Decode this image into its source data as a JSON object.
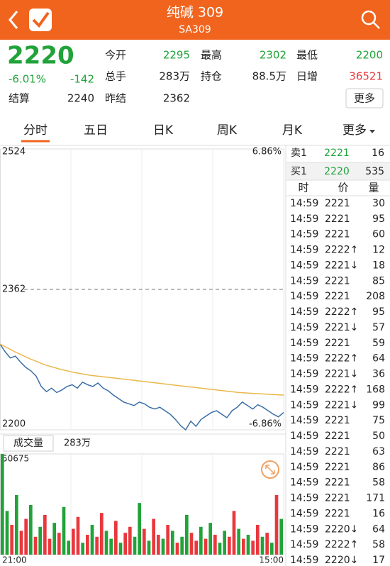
{
  "header": {
    "title": "纯碱 309",
    "subtitle": "SA309"
  },
  "quote": {
    "price": "2220",
    "change_pct": "-6.01%",
    "change": "-142",
    "settle_label": "结算",
    "settle": "2240",
    "prev_settle_label": "昨结",
    "prev_settle": "2362",
    "open_label": "今开",
    "open": "2295",
    "volume_label": "总手",
    "volume": "283万",
    "high_label": "最高",
    "high": "2302",
    "oi_label": "持仓",
    "oi": "88.5万",
    "low_label": "最低",
    "low": "2200",
    "oi_change_label": "日增",
    "oi_change": "36521",
    "more": "更多"
  },
  "tabs": [
    "分时",
    "五日",
    "日K",
    "周K",
    "月K",
    "更多"
  ],
  "chart_data": [
    {
      "type": "line",
      "ylim": [
        2200,
        2524
      ],
      "yticks": [
        2200,
        2362,
        2524
      ],
      "y2lim": [
        -6.86,
        6.86
      ],
      "y2ticks": [
        {
          "value": 6.86,
          "label": "6.86%"
        },
        {
          "value": -6.86,
          "label": "-6.86%"
        }
      ],
      "series": [
        {
          "color": "#3a6ea5",
          "values": [
            2299,
            2290,
            2283,
            2285,
            2278,
            2272,
            2268,
            2262,
            2250,
            2244,
            2248,
            2243,
            2246,
            2250,
            2252,
            2248,
            2255,
            2252,
            2250,
            2254,
            2248,
            2245,
            2240,
            2236,
            2232,
            2230,
            2228,
            2232,
            2230,
            2226,
            2224,
            2226,
            2222,
            2218,
            2212,
            2205,
            2200,
            2210,
            2204,
            2212,
            2216,
            2220,
            2222,
            2218,
            2214,
            2222,
            2226,
            2232,
            2228,
            2224,
            2229,
            2226,
            2222,
            2218,
            2215,
            2220
          ]
        },
        {
          "color": "#e8b84a",
          "values": [
            2299,
            2290,
            2282,
            2275,
            2270,
            2266,
            2263,
            2261,
            2259,
            2257,
            2255,
            2253,
            2251,
            2249,
            2247,
            2245,
            2243,
            2242,
            2241,
            2240
          ]
        }
      ]
    },
    {
      "type": "bar",
      "label": "成交量",
      "total": "283万",
      "ylim": [
        0,
        50675
      ],
      "yticks": [
        50675
      ],
      "x_labels": [
        "21:00",
        "15:00"
      ],
      "colors": {
        "up": "#e8383d",
        "down": "#21a33a"
      },
      "values": [
        50675,
        22000,
        15000,
        30000,
        12000,
        18000,
        25000,
        9000,
        14000,
        20000,
        8000,
        16000,
        11000,
        24000,
        7000,
        13000,
        19000,
        6000,
        10000,
        15000,
        9000,
        21000,
        12000,
        8000,
        17000,
        6000,
        11000,
        14000,
        9000,
        26000,
        13000,
        7000,
        18000,
        10000,
        8000,
        15000,
        12000,
        6000,
        9000,
        20000,
        11000,
        7000,
        14000,
        8000,
        16000,
        10000,
        6000,
        12000,
        9000,
        22000,
        13000,
        8000,
        10000,
        7000,
        15000,
        9000,
        11000,
        6000,
        30000,
        18000
      ],
      "directions": [
        "down",
        "down",
        "up",
        "down",
        "up",
        "up",
        "down",
        "up",
        "down",
        "up",
        "up",
        "down",
        "up",
        "down",
        "down",
        "up",
        "up",
        "down",
        "up",
        "down",
        "up",
        "up",
        "down",
        "down",
        "up",
        "down",
        "up",
        "up",
        "down",
        "down",
        "up",
        "down",
        "up",
        "up",
        "down",
        "up",
        "down",
        "up",
        "down",
        "down",
        "up",
        "up",
        "down",
        "up",
        "down",
        "up",
        "down",
        "down",
        "up",
        "up",
        "down",
        "up",
        "down",
        "up",
        "up",
        "down",
        "up",
        "down",
        "up",
        "down"
      ]
    }
  ],
  "order_book": {
    "ask_label": "卖1",
    "ask_price": "2221",
    "ask_volume": "16",
    "bid_label": "买1",
    "bid_price": "2220",
    "bid_volume": "535"
  },
  "trades": {
    "columns": [
      "时",
      "价",
      "量"
    ],
    "rows": [
      {
        "time": "14:59",
        "price": "2221",
        "volume": "30",
        "price_color": "#21a33a",
        "volume_color": "#e8383d"
      },
      {
        "time": "14:59",
        "price": "2221",
        "volume": "95",
        "price_color": "#21a33a",
        "volume_color": "#e8383d"
      },
      {
        "time": "14:59",
        "price": "2221",
        "volume": "60",
        "price_color": "#21a33a",
        "volume_color": "#e8383d"
      },
      {
        "time": "14:59",
        "price": "2222↑",
        "volume": "12",
        "price_color": "#e8383d",
        "volume_color": "#e8383d"
      },
      {
        "time": "14:59",
        "price": "2221↓",
        "volume": "18",
        "price_color": "#21a33a",
        "volume_color": "#21a33a"
      },
      {
        "time": "14:59",
        "price": "2221",
        "volume": "85",
        "price_color": "#21a33a",
        "volume_color": "#21a33a"
      },
      {
        "time": "14:59",
        "price": "2221",
        "volume": "208",
        "price_color": "#21a33a",
        "volume_color": "#21a33a"
      },
      {
        "time": "14:59",
        "price": "2222↑",
        "volume": "95",
        "price_color": "#e8383d",
        "volume_color": "#e8383d"
      },
      {
        "time": "14:59",
        "price": "2221↓",
        "volume": "57",
        "price_color": "#21a33a",
        "volume_color": "#21a33a"
      },
      {
        "time": "14:59",
        "price": "2221",
        "volume": "59",
        "price_color": "#21a33a",
        "volume_color": "#21a33a"
      },
      {
        "time": "14:59",
        "price": "2222↑",
        "volume": "64",
        "price_color": "#e8383d",
        "volume_color": "#e8383d"
      },
      {
        "time": "14:59",
        "price": "2221↓",
        "volume": "36",
        "price_color": "#21a33a",
        "volume_color": "#21a33a"
      },
      {
        "time": "14:59",
        "price": "2222↑",
        "volume": "168",
        "price_color": "#e8383d",
        "volume_color": "#e8383d"
      },
      {
        "time": "14:59",
        "price": "2221↓",
        "volume": "99",
        "price_color": "#21a33a",
        "volume_color": "#21a33a"
      },
      {
        "time": "14:59",
        "price": "2221",
        "volume": "75",
        "price_color": "#21a33a",
        "volume_color": "#e8383d"
      },
      {
        "time": "14:59",
        "price": "2221",
        "volume": "50",
        "price_color": "#21a33a",
        "volume_color": "#e8383d"
      },
      {
        "time": "14:59",
        "price": "2221",
        "volume": "63",
        "price_color": "#21a33a",
        "volume_color": "#e8383d"
      },
      {
        "time": "14:59",
        "price": "2221",
        "volume": "86",
        "price_color": "#21a33a",
        "volume_color": "#21a33a"
      },
      {
        "time": "14:59",
        "price": "2221",
        "volume": "58",
        "price_color": "#21a33a",
        "volume_color": "#21a33a"
      },
      {
        "time": "14:59",
        "price": "2221",
        "volume": "171",
        "price_color": "#21a33a",
        "volume_color": "#21a33a"
      },
      {
        "time": "14:59",
        "price": "2221",
        "volume": "16",
        "price_color": "#21a33a",
        "volume_color": "#21a33a"
      },
      {
        "time": "14:59",
        "price": "2220↓",
        "volume": "64",
        "price_color": "#21a33a",
        "volume_color": "#21a33a"
      },
      {
        "time": "14:59",
        "price": "2222↑",
        "volume": "58",
        "price_color": "#e8383d",
        "volume_color": "#e8383d"
      },
      {
        "time": "14:59",
        "price": "2220↓",
        "volume": "17",
        "price_color": "#21a33a",
        "volume_color": "#21a33a"
      }
    ]
  }
}
